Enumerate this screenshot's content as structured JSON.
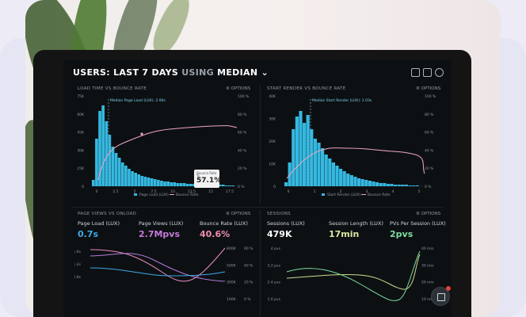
{
  "header": {
    "prefix": "USERS:",
    "range": "LAST 7 DAYS",
    "using": "USING",
    "method": "MEDIAN",
    "chevron": "⌄"
  },
  "panels": {
    "load": {
      "title": "LOAD TIME VS BOUNCE RATE",
      "options": "⚙ OPTIONS",
      "annotation": "Median Page Load (LUX): 2.90s",
      "y_left": [
        "75K",
        "60K",
        "45K",
        "30K",
        "15K",
        "0"
      ],
      "y_right": [
        "100 %",
        "80 %",
        "60 %",
        "40 %",
        "20 %",
        "0 %"
      ],
      "x": [
        "0",
        "2.5",
        "5",
        "7.5",
        "10",
        "12.5",
        "15",
        "17.5"
      ],
      "legend": [
        "Page Load (LUX)",
        "Bounce Rate"
      ],
      "tooltip_label": "Bounce Rate",
      "tooltip_sub": "%",
      "tooltip_value": "57.1%"
    },
    "render": {
      "title": "START RENDER VS BOUNCE RATE",
      "options": "⚙ OPTIONS",
      "annotation": "Median Start Render (LUX): 1.03s",
      "y_left": [
        "40K",
        "30K",
        "20K",
        "10K",
        "0"
      ],
      "y_right": [
        "100 %",
        "80 %",
        "60 %",
        "40 %",
        "20 %",
        "0 %"
      ],
      "x": [
        "0",
        "1",
        "2",
        "3",
        "4",
        "5"
      ],
      "legend": [
        "Start Render (LUX)",
        "Bounce Rate"
      ]
    },
    "pageviews": {
      "title": "PAGE VIEWS VS ONLOAD",
      "options": "⚙ OPTIONS",
      "metrics": [
        {
          "label": "Page Load (LUX)",
          "value": "0.7s",
          "color": "#3fa9e6"
        },
        {
          "label": "Page Views (LUX)",
          "value": "2.7Mpvs",
          "color": "#c57ad8"
        },
        {
          "label": "Bounce Rate (LUX)",
          "value": "40.6%",
          "color": "#f08cb0"
        }
      ],
      "y_left": [
        "1.6s",
        "1.2s",
        "0.8s"
      ],
      "y_right": [
        "800K",
        "500K",
        "300K",
        "100K"
      ],
      "y_right2": [
        "60 %",
        "40 %",
        "20 %",
        "0 %"
      ]
    },
    "sessions": {
      "title": "SESSIONS",
      "options": "⚙ OPTIONS",
      "metrics": [
        {
          "label": "Sessions (LUX)",
          "value": "479K",
          "color": "#ffffff"
        },
        {
          "label": "Session Length (LUX)",
          "value": "17min",
          "color": "#d9e6a0"
        },
        {
          "label": "PVs Per Session (LUX)",
          "value": "2pvs",
          "color": "#7fdca0"
        }
      ],
      "y_left": [
        "4 pvs",
        "3.2 pvs",
        "2.4 pvs",
        "1.6 pvs"
      ],
      "y_right": [
        "40 min",
        "30 min",
        "20 min",
        "10 min"
      ]
    }
  },
  "colors": {
    "bars": "#35b8e0",
    "bounce_line": "#f0a6c4",
    "pink": "#e98bc4",
    "purple": "#b47ad6",
    "blue": "#3fa9e6",
    "green": "#7fdca0",
    "lime": "#c9dc8a"
  }
}
